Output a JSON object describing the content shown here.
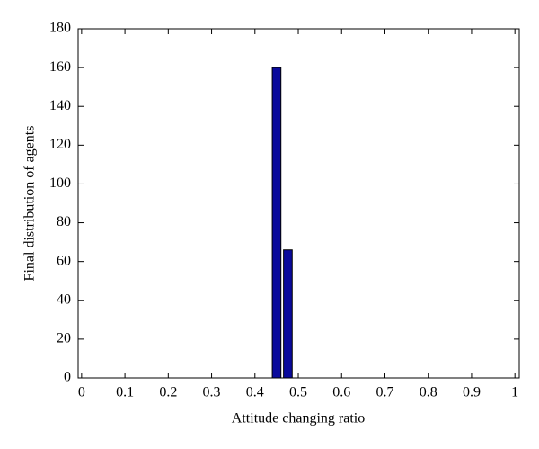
{
  "chart_data": {
    "type": "bar",
    "x": [
      0.45,
      0.476
    ],
    "values": [
      160,
      66
    ],
    "color": "#0a0a9c",
    "xlabel": "Attitude changing ratio",
    "ylabel": "Final distribution of agents",
    "xlim": [
      -0.008,
      1.01
    ],
    "ylim": [
      0,
      180
    ],
    "xticks": [
      0,
      0.1,
      0.2,
      0.3,
      0.4,
      0.5,
      0.6,
      0.7,
      0.8,
      0.9,
      1
    ],
    "yticks": [
      0,
      20,
      40,
      60,
      80,
      100,
      120,
      140,
      160,
      180
    ],
    "grid": false
  }
}
